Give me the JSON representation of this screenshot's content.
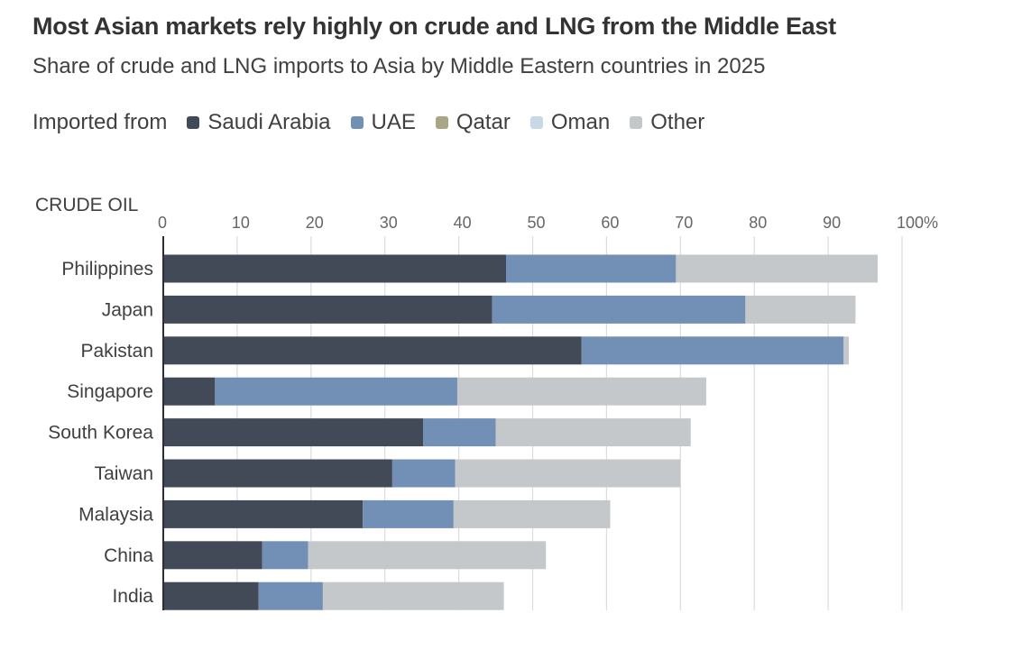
{
  "header": {
    "title": "Most Asian markets rely highly on crude and LNG from the Middle East",
    "subtitle": "Share of crude and LNG imports to Asia by Middle Eastern countries in 2025"
  },
  "legend": {
    "lead": "Imported from",
    "items": [
      {
        "label": "Saudi Arabia",
        "color": "#434a57"
      },
      {
        "label": "UAE",
        "color": "#728fb6"
      },
      {
        "label": "Qatar",
        "color": "#a9a683"
      },
      {
        "label": "Oman",
        "color": "#c9d8e6"
      },
      {
        "label": "Other",
        "color": "#c5c8cb"
      }
    ]
  },
  "chart_data": {
    "type": "bar",
    "orientation": "horizontal",
    "stacked": true,
    "title": "Most Asian markets rely highly on crude and LNG from the Middle East",
    "subtitle": "Share of crude and LNG imports to Asia by Middle Eastern countries in 2025",
    "section_label": "CRUDE OIL",
    "xlabel": "",
    "ylabel": "",
    "xlim": [
      0,
      100
    ],
    "x_ticks": [
      0,
      10,
      20,
      30,
      40,
      50,
      60,
      70,
      80,
      90,
      100
    ],
    "x_tick_labels": [
      "0",
      "10",
      "20",
      "30",
      "40",
      "50",
      "60",
      "70",
      "80",
      "90",
      "100%"
    ],
    "grid": true,
    "legend_position": "top-left",
    "categories": [
      "Philippines",
      "Japan",
      "Pakistan",
      "Singapore",
      "South Korea",
      "Taiwan",
      "Malaysia",
      "China",
      "India"
    ],
    "series": [
      {
        "name": "Saudi Arabia",
        "color": "#434a57",
        "values": [
          46.4,
          44.5,
          56.6,
          7.0,
          35.2,
          31.0,
          27.0,
          13.4,
          12.9
        ]
      },
      {
        "name": "UAE",
        "color": "#728fb6",
        "values": [
          23.0,
          34.3,
          35.5,
          32.8,
          9.8,
          8.5,
          12.3,
          6.2,
          8.7
        ]
      },
      {
        "name": "Qatar",
        "color": "#a9a683",
        "values": [
          0,
          0,
          0,
          0,
          0,
          0,
          0,
          0,
          0
        ]
      },
      {
        "name": "Oman",
        "color": "#c9d8e6",
        "values": [
          0,
          0,
          0,
          0,
          0,
          0,
          0,
          0,
          0
        ]
      },
      {
        "name": "Other",
        "color": "#c5c8cb",
        "values": [
          27.3,
          14.9,
          0.7,
          33.7,
          26.4,
          30.5,
          21.2,
          32.2,
          24.5
        ]
      }
    ]
  }
}
